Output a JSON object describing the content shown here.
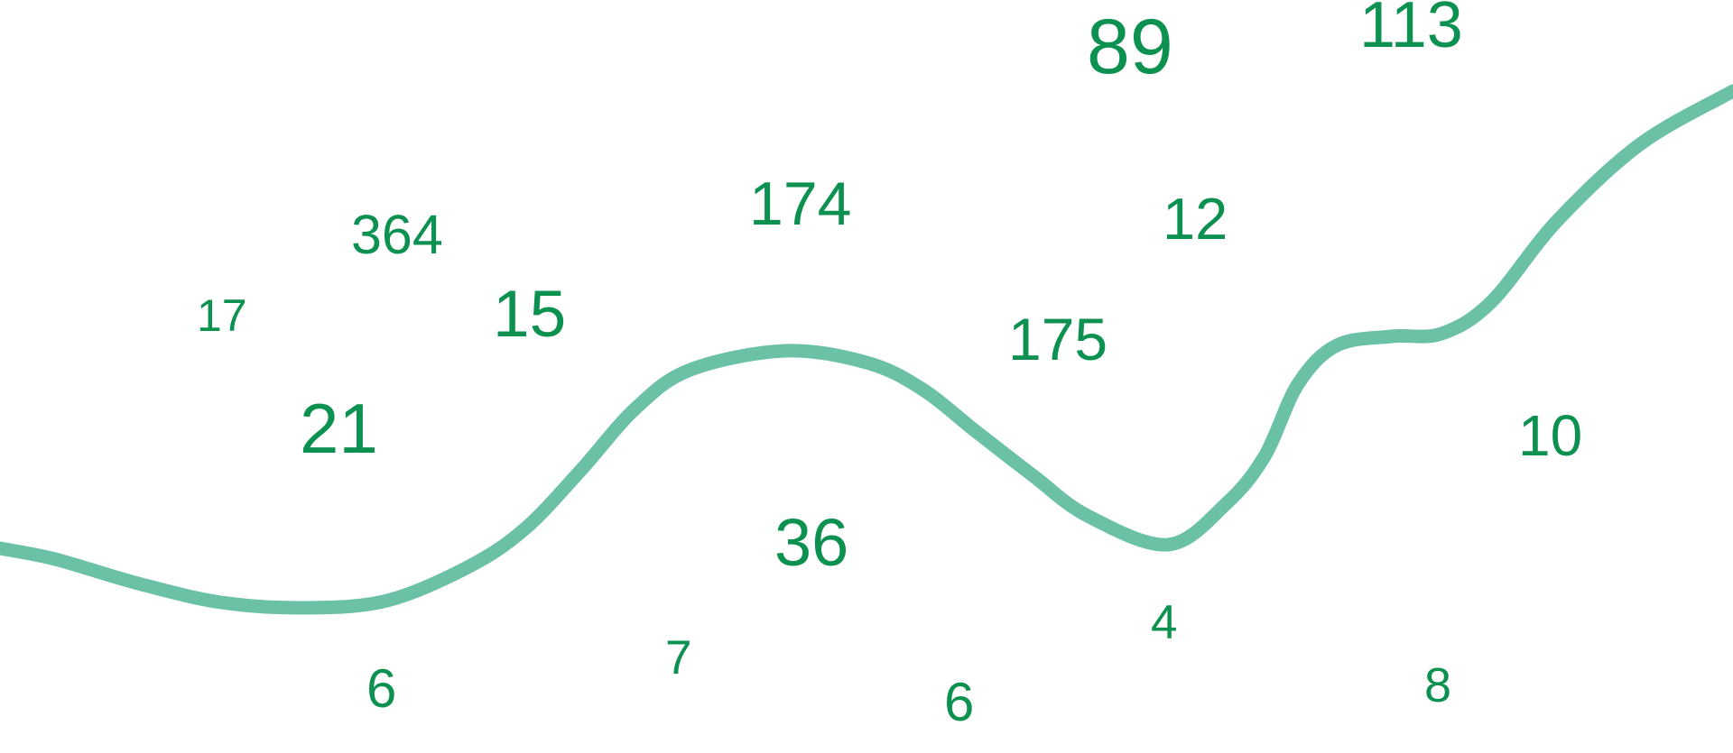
{
  "colors": {
    "number": "#0d9150",
    "curve": "#6bc1a5",
    "background": "#ffffff"
  },
  "numbers": [
    "364",
    "174",
    "17",
    "15",
    "21",
    "36",
    "7",
    "6",
    "89",
    "113",
    "12",
    "175",
    "10",
    "4",
    "6",
    "8"
  ]
}
